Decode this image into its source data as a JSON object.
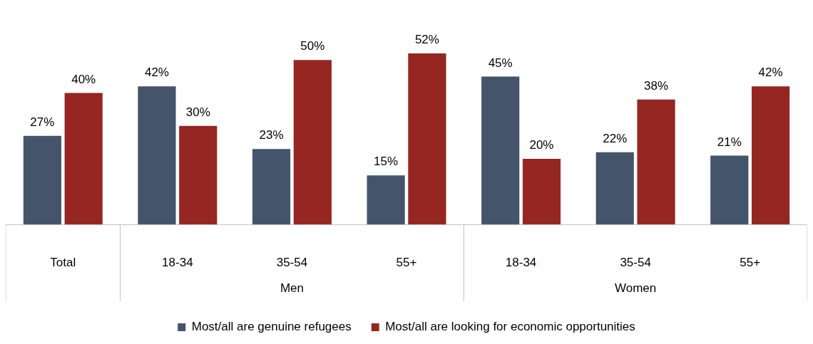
{
  "chart_data": {
    "type": "bar",
    "categories": [
      "Total",
      "18-34",
      "35-54",
      "55+",
      "18-34",
      "35-54",
      "55+"
    ],
    "annotations": [
      "Men",
      "Women"
    ],
    "series": [
      {
        "name": "Most/all are genuine refugees",
        "color": "#44546a",
        "values": [
          27,
          42,
          23,
          15,
          45,
          22,
          21
        ],
        "value_labels": [
          "27%",
          "42%",
          "23%",
          "15%",
          "45%",
          "22%",
          "21%"
        ]
      },
      {
        "name": "Most/all are looking for economic opportunities",
        "color": "#952622",
        "values": [
          40,
          30,
          50,
          52,
          20,
          38,
          42
        ],
        "value_labels": [
          "40%",
          "30%",
          "50%",
          "52%",
          "20%",
          "38%",
          "42%"
        ]
      }
    ],
    "tick_labels": "x",
    "grid": false,
    "legend": "bottom"
  }
}
